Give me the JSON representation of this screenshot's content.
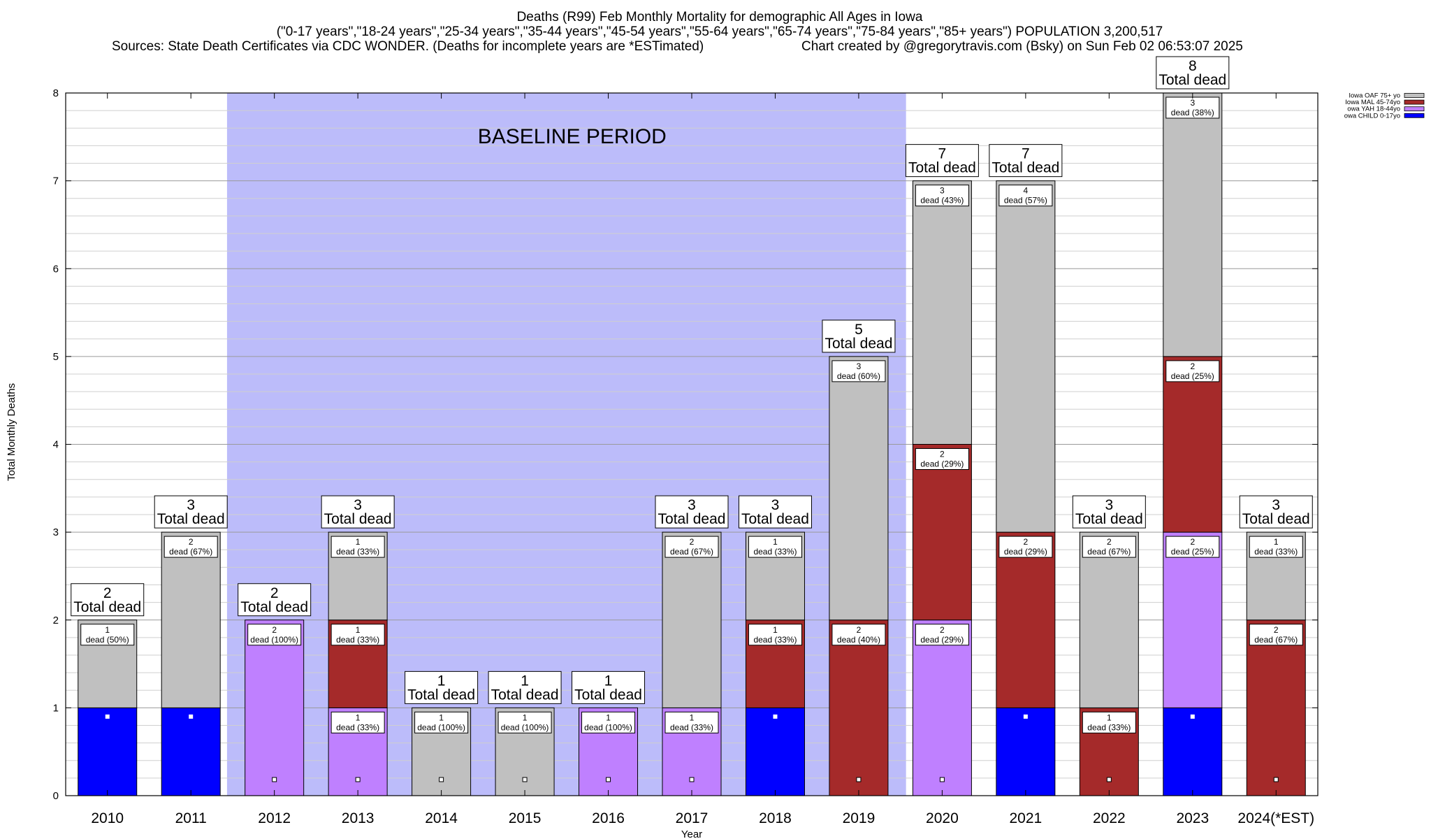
{
  "header": {
    "line1": "Deaths (R99) Feb Monthly Mortality for demographic All Ages in Iowa",
    "line2": "(\"0-17 years\",\"18-24 years\",\"25-34 years\",\"35-44 years\",\"45-54 years\",\"55-64 years\",\"65-74 years\",\"75-84 years\",\"85+ years\") POPULATION 3,200,517",
    "sources": "Sources: State Death Certificates via CDC WONDER. (Deaths for incomplete years are *ESTimated)",
    "credit": "Chart created by @gregorytravis.com (Bsky) on Sun Feb 02 06:53:07 2025"
  },
  "chart_data": {
    "type": "bar",
    "stacked": true,
    "title": "Deaths (R99) Feb Monthly Mortality for demographic All Ages in Iowa",
    "xlabel": "Year",
    "ylabel": "Total Monthly Deaths",
    "ylim": [
      0,
      8
    ],
    "yticks": [
      0,
      1,
      2,
      3,
      4,
      5,
      6,
      7,
      8
    ],
    "grid": true,
    "legend_position": "top-right",
    "baseline_label": "BASELINE PERIOD",
    "baseline_range": [
      "2012",
      "2019"
    ],
    "total_suffix": "Total dead",
    "categories": [
      "2010",
      "2011",
      "2012",
      "2013",
      "2014",
      "2015",
      "2016",
      "2017",
      "2018",
      "2019",
      "2020",
      "2021",
      "2022",
      "2023",
      "2024(*EST)"
    ],
    "series": [
      {
        "name": "owa CHILD 0-17yo",
        "color": "#0000ff",
        "values": [
          1,
          1,
          0,
          0,
          0,
          0,
          0,
          0,
          1,
          0,
          0,
          1,
          0,
          1,
          0
        ]
      },
      {
        "name": "owa YAH 18-44yo",
        "color": "#bf80ff",
        "values": [
          0,
          0,
          2,
          1,
          0,
          0,
          1,
          1,
          0,
          0,
          2,
          0,
          0,
          2,
          0
        ]
      },
      {
        "name": "Iowa MAL 45-74yo",
        "color": "#a52a2a",
        "values": [
          0,
          0,
          0,
          1,
          0,
          0,
          0,
          0,
          1,
          2,
          2,
          2,
          1,
          2,
          2
        ]
      },
      {
        "name": "Iowa OAF 75+ yo",
        "color": "#c0c0c0",
        "values": [
          1,
          2,
          0,
          1,
          1,
          1,
          0,
          2,
          1,
          3,
          3,
          4,
          2,
          3,
          1
        ]
      }
    ],
    "totals": [
      2,
      3,
      2,
      3,
      1,
      1,
      1,
      3,
      3,
      5,
      7,
      7,
      3,
      8,
      3
    ],
    "segment_labels": [
      [
        {
          "series": 3,
          "count": "1",
          "text": "dead (50%)"
        }
      ],
      [
        {
          "series": 3,
          "count": "2",
          "text": "dead (67%)"
        }
      ],
      [
        {
          "series": 1,
          "count": "2",
          "text": "dead (100%)"
        }
      ],
      [
        {
          "series": 1,
          "count": "1",
          "text": "dead (33%)"
        },
        {
          "series": 2,
          "count": "1",
          "text": "dead (33%)"
        },
        {
          "series": 3,
          "count": "1",
          "text": "dead (33%)"
        }
      ],
      [
        {
          "series": 3,
          "count": "1",
          "text": "dead (100%)"
        }
      ],
      [
        {
          "series": 3,
          "count": "1",
          "text": "dead (100%)"
        }
      ],
      [
        {
          "series": 1,
          "count": "1",
          "text": "dead (100%)"
        }
      ],
      [
        {
          "series": 1,
          "count": "1",
          "text": "dead (33%)"
        },
        {
          "series": 3,
          "count": "2",
          "text": "dead (67%)"
        }
      ],
      [
        {
          "series": 2,
          "count": "1",
          "text": "dead (33%)"
        },
        {
          "series": 3,
          "count": "1",
          "text": "dead (33%)"
        }
      ],
      [
        {
          "series": 2,
          "count": "2",
          "text": "dead (40%)"
        },
        {
          "series": 3,
          "count": "3",
          "text": "dead (60%)"
        }
      ],
      [
        {
          "series": 1,
          "count": "2",
          "text": "dead (29%)"
        },
        {
          "series": 2,
          "count": "2",
          "text": "dead (29%)"
        },
        {
          "series": 3,
          "count": "3",
          "text": "dead (43%)"
        }
      ],
      [
        {
          "series": 2,
          "count": "2",
          "text": "dead (29%)"
        },
        {
          "series": 3,
          "count": "4",
          "text": "dead (57%)"
        }
      ],
      [
        {
          "series": 2,
          "count": "1",
          "text": "dead (33%)"
        },
        {
          "series": 3,
          "count": "2",
          "text": "dead (67%)"
        }
      ],
      [
        {
          "series": 1,
          "count": "2",
          "text": "dead (25%)"
        },
        {
          "series": 2,
          "count": "2",
          "text": "dead (25%)"
        },
        {
          "series": 3,
          "count": "3",
          "text": "dead (38%)"
        }
      ],
      [
        {
          "series": 2,
          "count": "2",
          "text": "dead (67%)"
        },
        {
          "series": 3,
          "count": "1",
          "text": "dead (33%)"
        }
      ]
    ],
    "legend_order": [
      3,
      2,
      1,
      0
    ]
  }
}
